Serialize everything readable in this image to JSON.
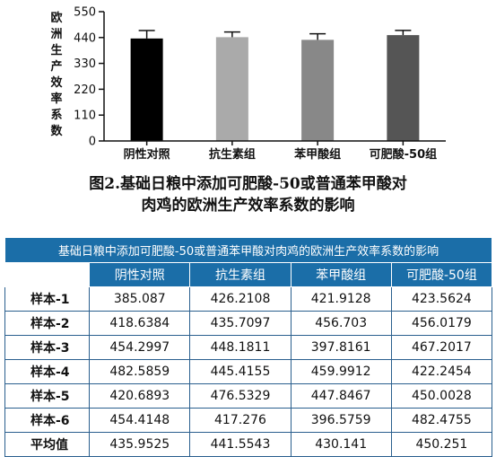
{
  "chart_data": {
    "type": "bar",
    "ylabel": "欧洲生产效率系数",
    "ylim": [
      0,
      550
    ],
    "yticks": [
      0,
      110,
      220,
      330,
      440,
      550
    ],
    "categories": [
      "阴性对照",
      "抗生素组",
      "苯甲酸组",
      "可肥酸-50组"
    ],
    "values": [
      435.9525,
      441.5543,
      430.141,
      450.251
    ],
    "errors": [
      34,
      22,
      26,
      20
    ],
    "colors": [
      "#000000",
      "#aaaaaa",
      "#888888",
      "#555555"
    ],
    "grid": false
  },
  "caption": {
    "line1": "图2.基础日粮中添加可肥酸-50或普通苯甲酸对",
    "line2": "肉鸡的欧洲生产效率系数的影响"
  },
  "table": {
    "title": "基础日粮中添加可肥酸-50或普通苯甲酸对肉鸡的欧洲生产效率系数的影响",
    "headers": [
      "阴性对照",
      "抗生素组",
      "苯甲酸组",
      "可肥酸-50组"
    ],
    "rows": [
      {
        "label": "样本-1",
        "values": [
          "385.087",
          "426.2108",
          "421.9128",
          "423.5624"
        ]
      },
      {
        "label": "样本-2",
        "values": [
          "418.6384",
          "435.7097",
          "456.703",
          "456.0179"
        ]
      },
      {
        "label": "样本-3",
        "values": [
          "454.2997",
          "448.1811",
          "397.8161",
          "467.2017"
        ]
      },
      {
        "label": "样本-4",
        "values": [
          "482.5859",
          "445.4155",
          "459.9912",
          "422.2454"
        ]
      },
      {
        "label": "样本-5",
        "values": [
          "420.6893",
          "476.5329",
          "447.8467",
          "450.0028"
        ]
      },
      {
        "label": "样本-6",
        "values": [
          "454.4148",
          "417.276",
          "396.5759",
          "482.4755"
        ]
      },
      {
        "label": "平均值",
        "values": [
          "435.9525",
          "441.5543",
          "430.141",
          "450.251"
        ]
      }
    ]
  }
}
